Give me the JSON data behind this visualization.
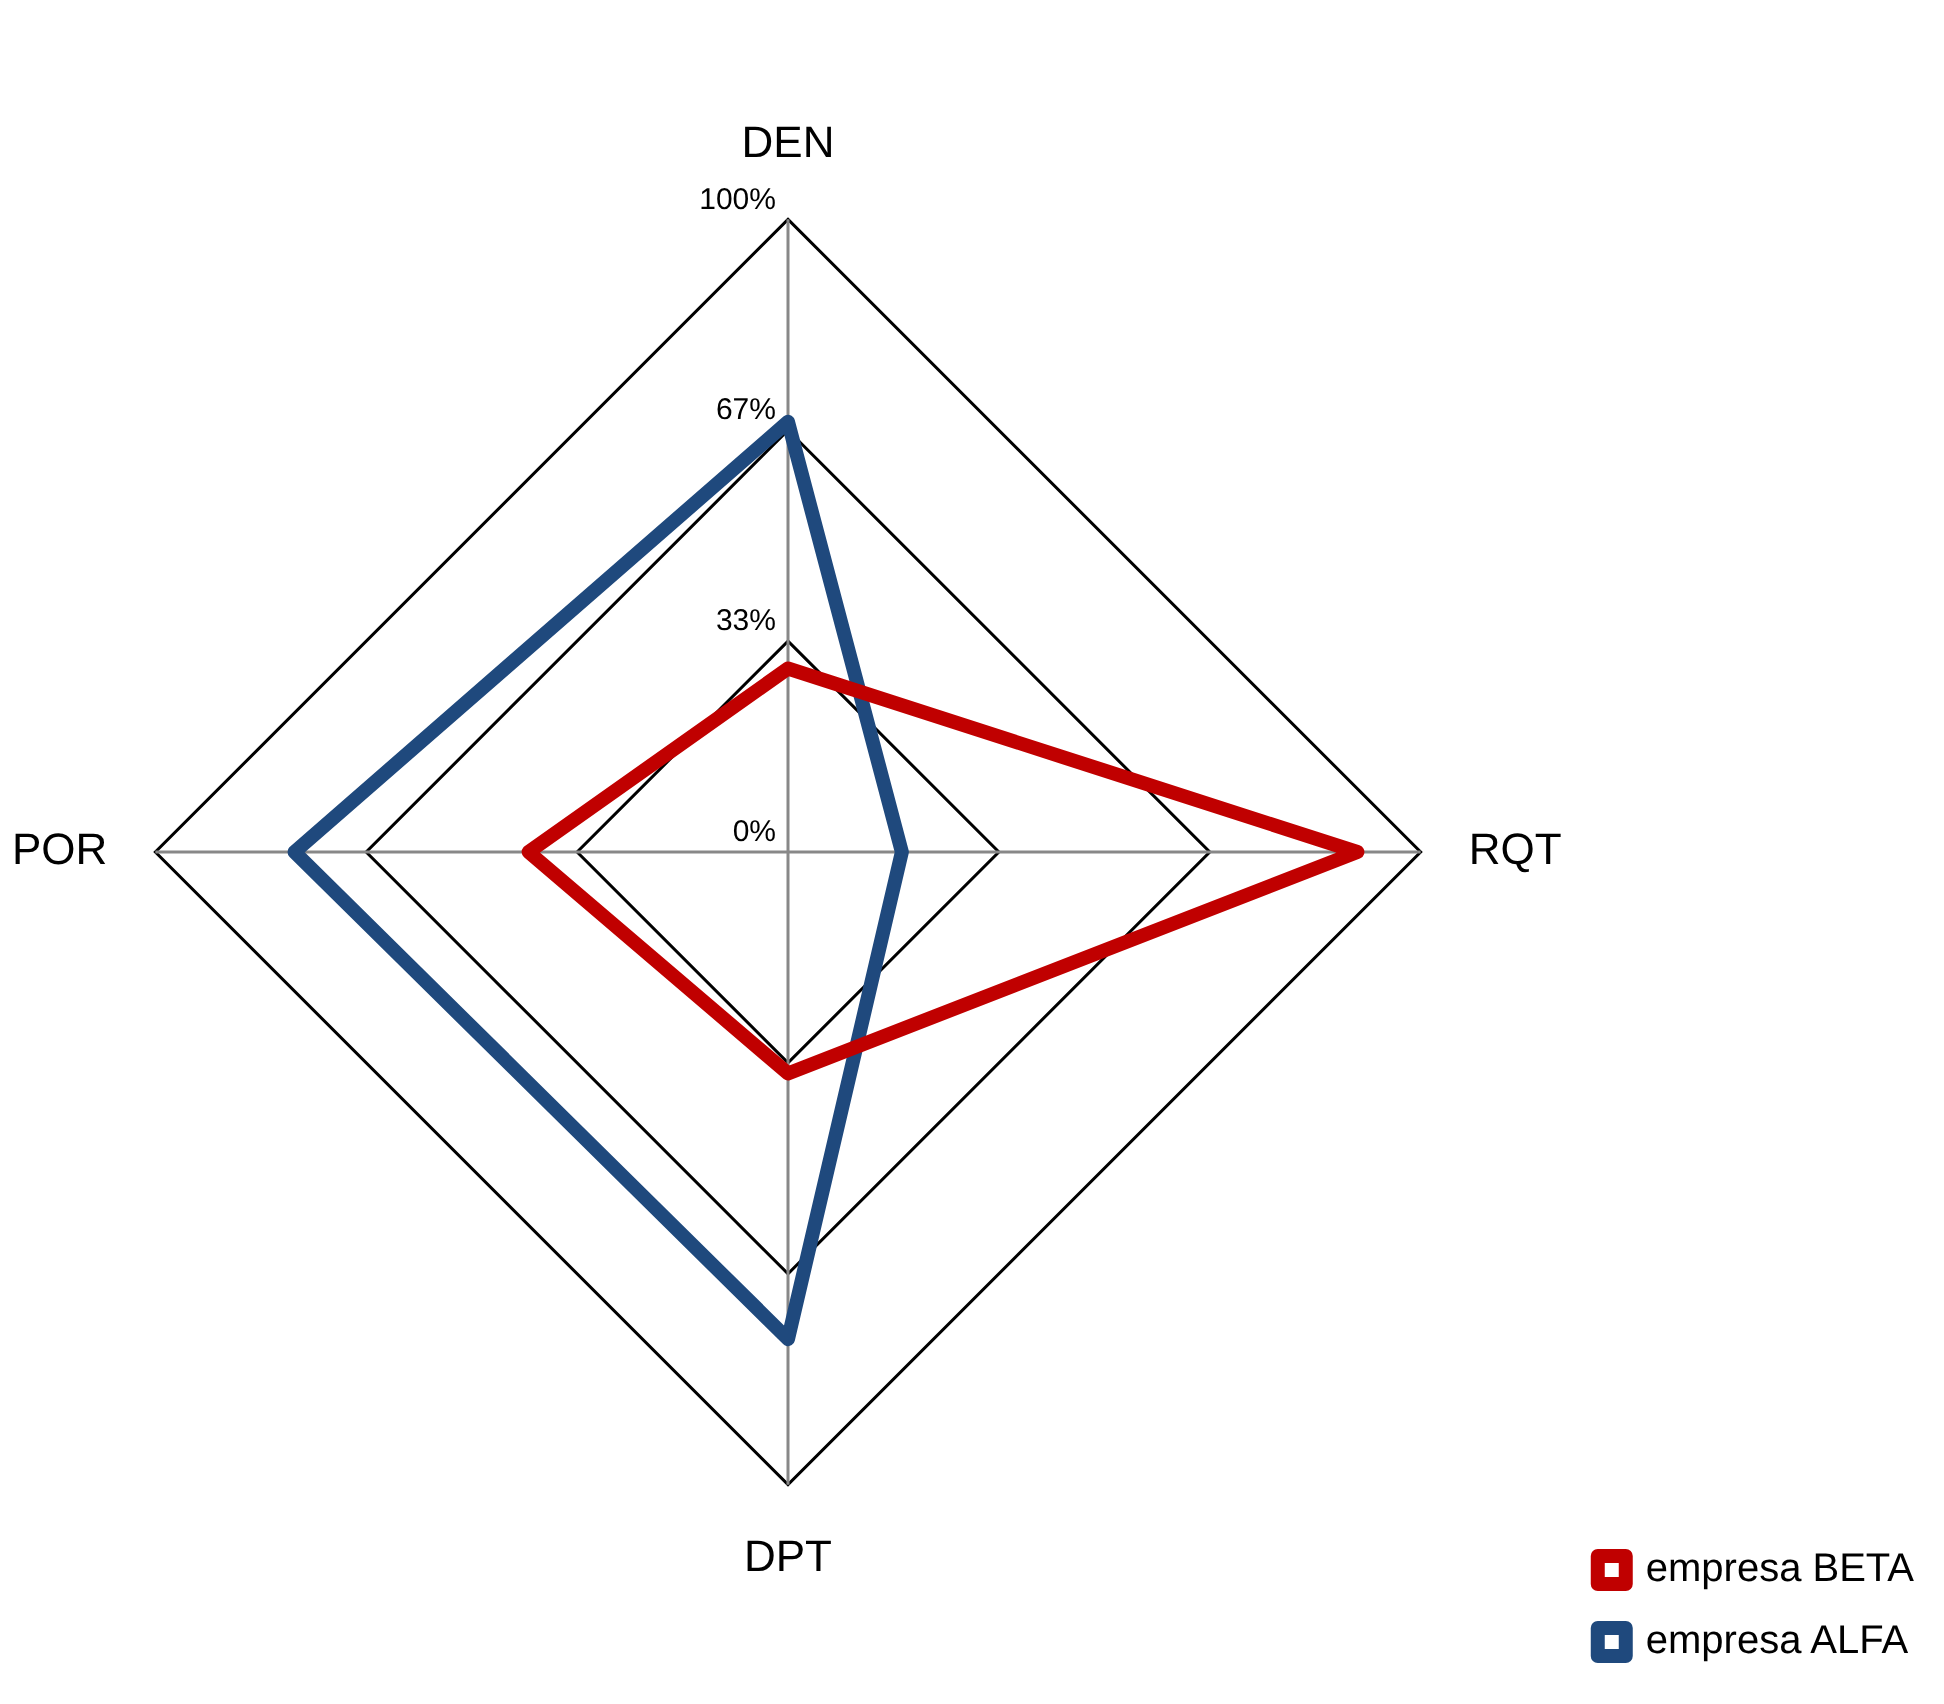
{
  "chart_data": {
    "type": "radar",
    "categories": [
      "DEN",
      "RQT",
      "DPT",
      "POR"
    ],
    "series": [
      {
        "name": "empresa BETA",
        "color": "#c00000",
        "values": [
          29,
          90,
          35,
          41
        ]
      },
      {
        "name": "empresa ALFA",
        "color": "#1f497d",
        "values": [
          68,
          18,
          77,
          78
        ]
      }
    ],
    "ylim": [
      0,
      100
    ],
    "yticks": [
      {
        "value": 0,
        "label": "0%"
      },
      {
        "value": 33.33,
        "label": "33%"
      },
      {
        "value": 66.67,
        "label": "67%"
      },
      {
        "value": 100,
        "label": "100%"
      }
    ],
    "grid": true,
    "legend": "bottom right",
    "marker": "none",
    "line_style": "solid"
  }
}
